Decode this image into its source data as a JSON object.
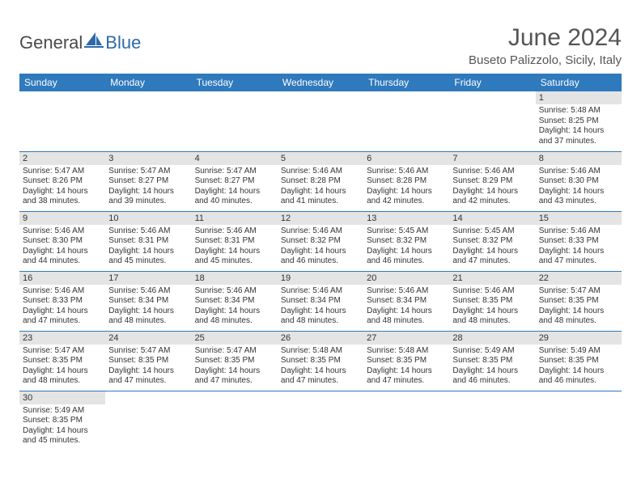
{
  "brand": {
    "part1": "General",
    "part2": "Blue"
  },
  "title": "June 2024",
  "location": "Buseto Palizzolo, Sicily, Italy",
  "colors": {
    "header_bg": "#2f79bd",
    "header_text": "#ffffff",
    "daynum_bg": "#e4e4e4",
    "border": "#2f79bd",
    "text": "#333333",
    "logo_blue": "#2d6aa8"
  },
  "day_headers": [
    "Sunday",
    "Monday",
    "Tuesday",
    "Wednesday",
    "Thursday",
    "Friday",
    "Saturday"
  ],
  "first_weekday_index": 6,
  "days": [
    {
      "n": 1,
      "sunrise": "5:48 AM",
      "sunset": "8:25 PM",
      "daylight": "14 hours and 37 minutes."
    },
    {
      "n": 2,
      "sunrise": "5:47 AM",
      "sunset": "8:26 PM",
      "daylight": "14 hours and 38 minutes."
    },
    {
      "n": 3,
      "sunrise": "5:47 AM",
      "sunset": "8:27 PM",
      "daylight": "14 hours and 39 minutes."
    },
    {
      "n": 4,
      "sunrise": "5:47 AM",
      "sunset": "8:27 PM",
      "daylight": "14 hours and 40 minutes."
    },
    {
      "n": 5,
      "sunrise": "5:46 AM",
      "sunset": "8:28 PM",
      "daylight": "14 hours and 41 minutes."
    },
    {
      "n": 6,
      "sunrise": "5:46 AM",
      "sunset": "8:28 PM",
      "daylight": "14 hours and 42 minutes."
    },
    {
      "n": 7,
      "sunrise": "5:46 AM",
      "sunset": "8:29 PM",
      "daylight": "14 hours and 42 minutes."
    },
    {
      "n": 8,
      "sunrise": "5:46 AM",
      "sunset": "8:30 PM",
      "daylight": "14 hours and 43 minutes."
    },
    {
      "n": 9,
      "sunrise": "5:46 AM",
      "sunset": "8:30 PM",
      "daylight": "14 hours and 44 minutes."
    },
    {
      "n": 10,
      "sunrise": "5:46 AM",
      "sunset": "8:31 PM",
      "daylight": "14 hours and 45 minutes."
    },
    {
      "n": 11,
      "sunrise": "5:46 AM",
      "sunset": "8:31 PM",
      "daylight": "14 hours and 45 minutes."
    },
    {
      "n": 12,
      "sunrise": "5:46 AM",
      "sunset": "8:32 PM",
      "daylight": "14 hours and 46 minutes."
    },
    {
      "n": 13,
      "sunrise": "5:45 AM",
      "sunset": "8:32 PM",
      "daylight": "14 hours and 46 minutes."
    },
    {
      "n": 14,
      "sunrise": "5:45 AM",
      "sunset": "8:32 PM",
      "daylight": "14 hours and 47 minutes."
    },
    {
      "n": 15,
      "sunrise": "5:46 AM",
      "sunset": "8:33 PM",
      "daylight": "14 hours and 47 minutes."
    },
    {
      "n": 16,
      "sunrise": "5:46 AM",
      "sunset": "8:33 PM",
      "daylight": "14 hours and 47 minutes."
    },
    {
      "n": 17,
      "sunrise": "5:46 AM",
      "sunset": "8:34 PM",
      "daylight": "14 hours and 48 minutes."
    },
    {
      "n": 18,
      "sunrise": "5:46 AM",
      "sunset": "8:34 PM",
      "daylight": "14 hours and 48 minutes."
    },
    {
      "n": 19,
      "sunrise": "5:46 AM",
      "sunset": "8:34 PM",
      "daylight": "14 hours and 48 minutes."
    },
    {
      "n": 20,
      "sunrise": "5:46 AM",
      "sunset": "8:34 PM",
      "daylight": "14 hours and 48 minutes."
    },
    {
      "n": 21,
      "sunrise": "5:46 AM",
      "sunset": "8:35 PM",
      "daylight": "14 hours and 48 minutes."
    },
    {
      "n": 22,
      "sunrise": "5:47 AM",
      "sunset": "8:35 PM",
      "daylight": "14 hours and 48 minutes."
    },
    {
      "n": 23,
      "sunrise": "5:47 AM",
      "sunset": "8:35 PM",
      "daylight": "14 hours and 48 minutes."
    },
    {
      "n": 24,
      "sunrise": "5:47 AM",
      "sunset": "8:35 PM",
      "daylight": "14 hours and 47 minutes."
    },
    {
      "n": 25,
      "sunrise": "5:47 AM",
      "sunset": "8:35 PM",
      "daylight": "14 hours and 47 minutes."
    },
    {
      "n": 26,
      "sunrise": "5:48 AM",
      "sunset": "8:35 PM",
      "daylight": "14 hours and 47 minutes."
    },
    {
      "n": 27,
      "sunrise": "5:48 AM",
      "sunset": "8:35 PM",
      "daylight": "14 hours and 47 minutes."
    },
    {
      "n": 28,
      "sunrise": "5:49 AM",
      "sunset": "8:35 PM",
      "daylight": "14 hours and 46 minutes."
    },
    {
      "n": 29,
      "sunrise": "5:49 AM",
      "sunset": "8:35 PM",
      "daylight": "14 hours and 46 minutes."
    },
    {
      "n": 30,
      "sunrise": "5:49 AM",
      "sunset": "8:35 PM",
      "daylight": "14 hours and 45 minutes."
    }
  ],
  "labels": {
    "sunrise": "Sunrise:",
    "sunset": "Sunset:",
    "daylight": "Daylight:"
  }
}
